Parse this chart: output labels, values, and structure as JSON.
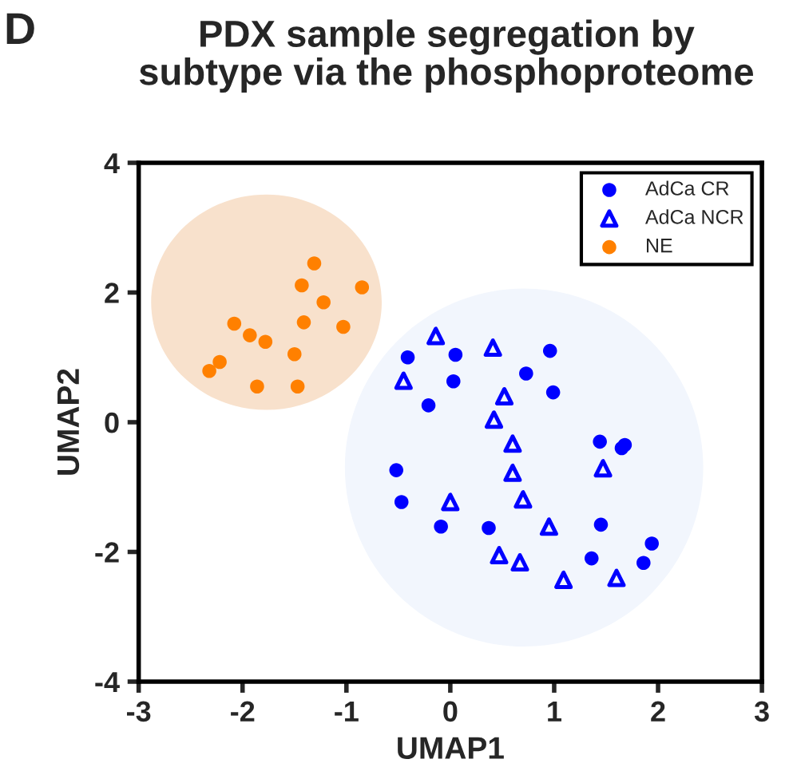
{
  "chart_data": {
    "type": "scatter",
    "title": "PDX sample segregation by\nsubtype via the phosphoproteome",
    "xlabel": "UMAP1",
    "ylabel": "UMAP2",
    "annotations": [
      "D"
    ],
    "xlim": [
      -3,
      3
    ],
    "xticks": [
      -3,
      -2,
      -1,
      0,
      1,
      2,
      3
    ],
    "ylim": [
      -4,
      4
    ],
    "yticks": [
      -4,
      -2,
      0,
      2,
      4
    ],
    "grid": false,
    "legend": "top right",
    "series": [
      {
        "name": "AdCa CR",
        "color": "#0000ff",
        "marker": "circle",
        "x": [
          -0.41,
          0.05,
          0.03,
          -0.21,
          0.96,
          0.73,
          0.99,
          1.44,
          1.65,
          1.68,
          -0.52,
          -0.47,
          -0.09,
          0.37,
          1.45,
          1.36,
          1.94,
          1.86
        ],
        "values": [
          1.0,
          1.04,
          0.63,
          0.26,
          1.1,
          0.75,
          0.46,
          -0.3,
          -0.4,
          -0.35,
          -0.74,
          -1.23,
          -1.61,
          -1.63,
          -1.58,
          -2.1,
          -1.87,
          -2.17
        ]
      },
      {
        "name": "AdCa NCR",
        "color": "#0000ff",
        "marker": "triangle",
        "x": [
          -0.14,
          0.41,
          -0.45,
          0.52,
          0.42,
          0.6,
          0.6,
          1.47,
          0.0,
          0.7,
          0.95,
          0.47,
          0.67,
          1.09,
          1.6
        ],
        "values": [
          1.33,
          1.15,
          0.64,
          0.4,
          0.04,
          -0.33,
          -0.78,
          -0.71,
          -1.23,
          -1.19,
          -1.61,
          -2.05,
          -2.16,
          -2.43,
          -2.4
        ]
      },
      {
        "name": "NE",
        "color": "#ff8000",
        "marker": "circle",
        "x": [
          -1.31,
          -1.43,
          -0.85,
          -1.22,
          -2.08,
          -1.41,
          -1.03,
          -1.93,
          -1.78,
          -1.5,
          -2.22,
          -2.32,
          -1.86,
          -1.47
        ],
        "values": [
          2.45,
          2.11,
          2.08,
          1.85,
          1.52,
          1.54,
          1.47,
          1.34,
          1.24,
          1.05,
          0.93,
          0.79,
          0.55,
          0.55
        ]
      }
    ]
  }
}
